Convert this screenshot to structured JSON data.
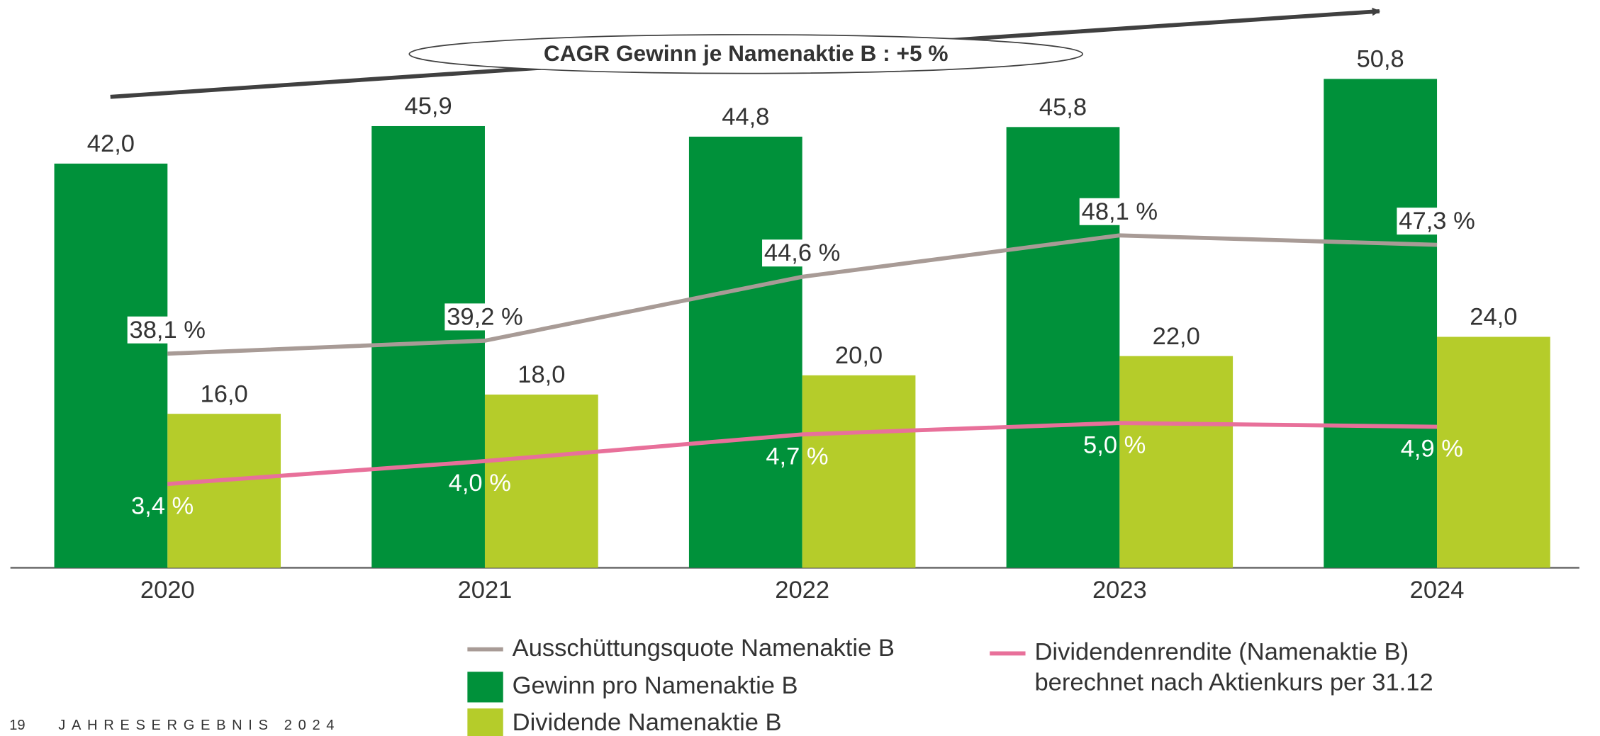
{
  "chart_data": {
    "type": "bar",
    "annotation": "CAGR Gewinn je Namenaktie B : +5 %",
    "categories": [
      "2020",
      "2021",
      "2022",
      "2023",
      "2024"
    ],
    "ylim": [
      0,
      59
    ],
    "y2lim": [
      20,
      68
    ],
    "y3lim": [
      1.2,
      16.1
    ],
    "series": [
      {
        "name": "Gewinn pro Namenaktie B",
        "type": "bar",
        "color": "#00913a",
        "values": [
          42.0,
          45.9,
          44.8,
          45.8,
          50.8
        ],
        "value_labels": [
          "42,0",
          "45,9",
          "44,8",
          "45,8",
          "50,8"
        ]
      },
      {
        "name": "Dividende Namenaktie B",
        "type": "bar",
        "color": "#b5cc2a",
        "values": [
          16.0,
          18.0,
          20.0,
          22.0,
          24.0
        ],
        "value_labels": [
          "16,0",
          "18,0",
          "20,0",
          "22,0",
          "24,0"
        ]
      },
      {
        "name": "Ausschüttungsquote Namenaktie B",
        "type": "line",
        "axis": "y2",
        "color": "#a89b96",
        "values": [
          38.1,
          39.2,
          44.6,
          48.1,
          47.3
        ],
        "value_labels": [
          "38,1 %",
          "39,2 %",
          "44,6 %",
          "48,1 %",
          "47,3 %"
        ]
      },
      {
        "name": "Dividendenrendite (Namenaktie B)",
        "note": "berechnet nach Aktienkurs per 31.12",
        "type": "line",
        "axis": "y3",
        "color": "#e8709a",
        "values": [
          3.4,
          4.0,
          4.7,
          5.0,
          4.9
        ],
        "value_labels": [
          "3,4 %",
          "4,0 %",
          "4,7 %",
          "5,0 %",
          "4,9 %"
        ]
      }
    ]
  },
  "footer": {
    "page": "19",
    "text": "JAHRESERGEBNIS 2024"
  }
}
